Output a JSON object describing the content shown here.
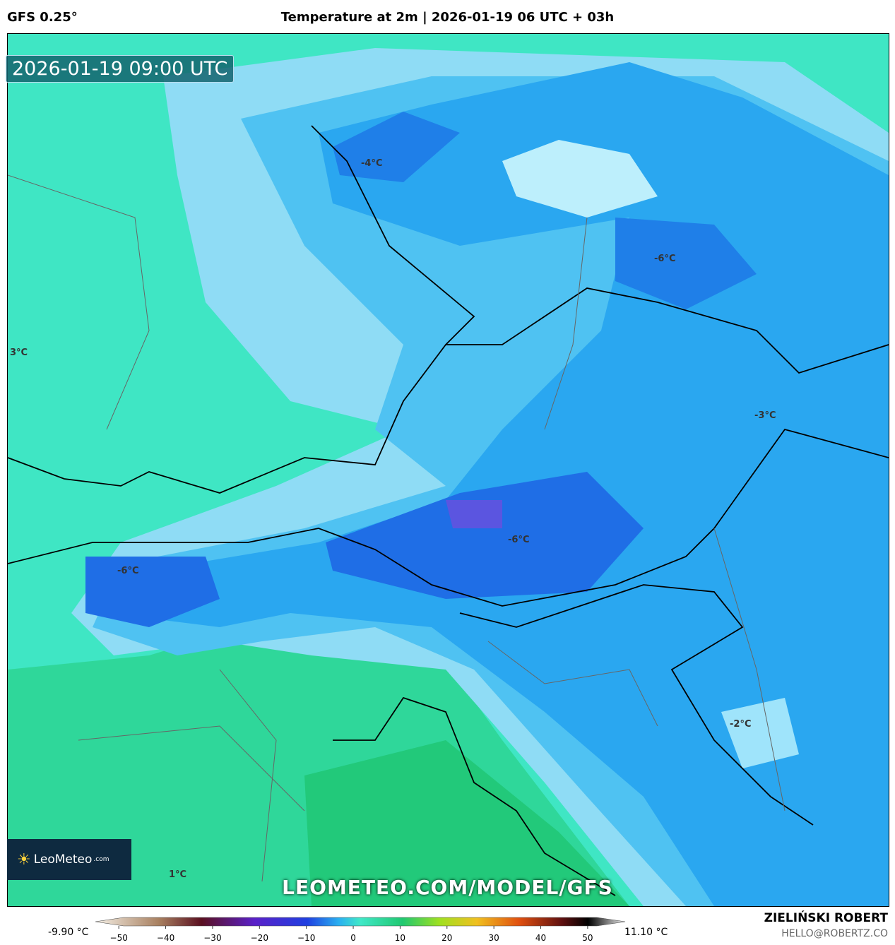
{
  "header": {
    "model": "GFS 0.25°",
    "title": "Temperature at 2m | 2026-01-19 06 UTC + 03h"
  },
  "map": {
    "timestamp": "2026-01-19 09:00 UTC",
    "contour_labels": [
      "-4°C",
      "-6°C",
      "3°C",
      "-3°C",
      "-6°C",
      "-6°C",
      "-2°C",
      "1°C"
    ],
    "logo": {
      "brand": "LeoMeteo",
      "suffix": ".com"
    },
    "watermark": "LEOMETEO.COM/MODEL/GFS"
  },
  "colorbar": {
    "min_label": "-9.90 °C",
    "max_label": "11.10 °C",
    "range": [
      -55,
      58
    ],
    "ticks": [
      {
        "value": -50,
        "label": "−50"
      },
      {
        "value": -40,
        "label": "−40"
      },
      {
        "value": -30,
        "label": "−30"
      },
      {
        "value": -20,
        "label": "−20"
      },
      {
        "value": -10,
        "label": "−10"
      },
      0,
      10,
      20,
      30,
      40,
      50
    ]
  },
  "footer": {
    "author": "ZIELIŃSKI ROBERT",
    "email": "HELLO@ROBERTZ.CO"
  }
}
